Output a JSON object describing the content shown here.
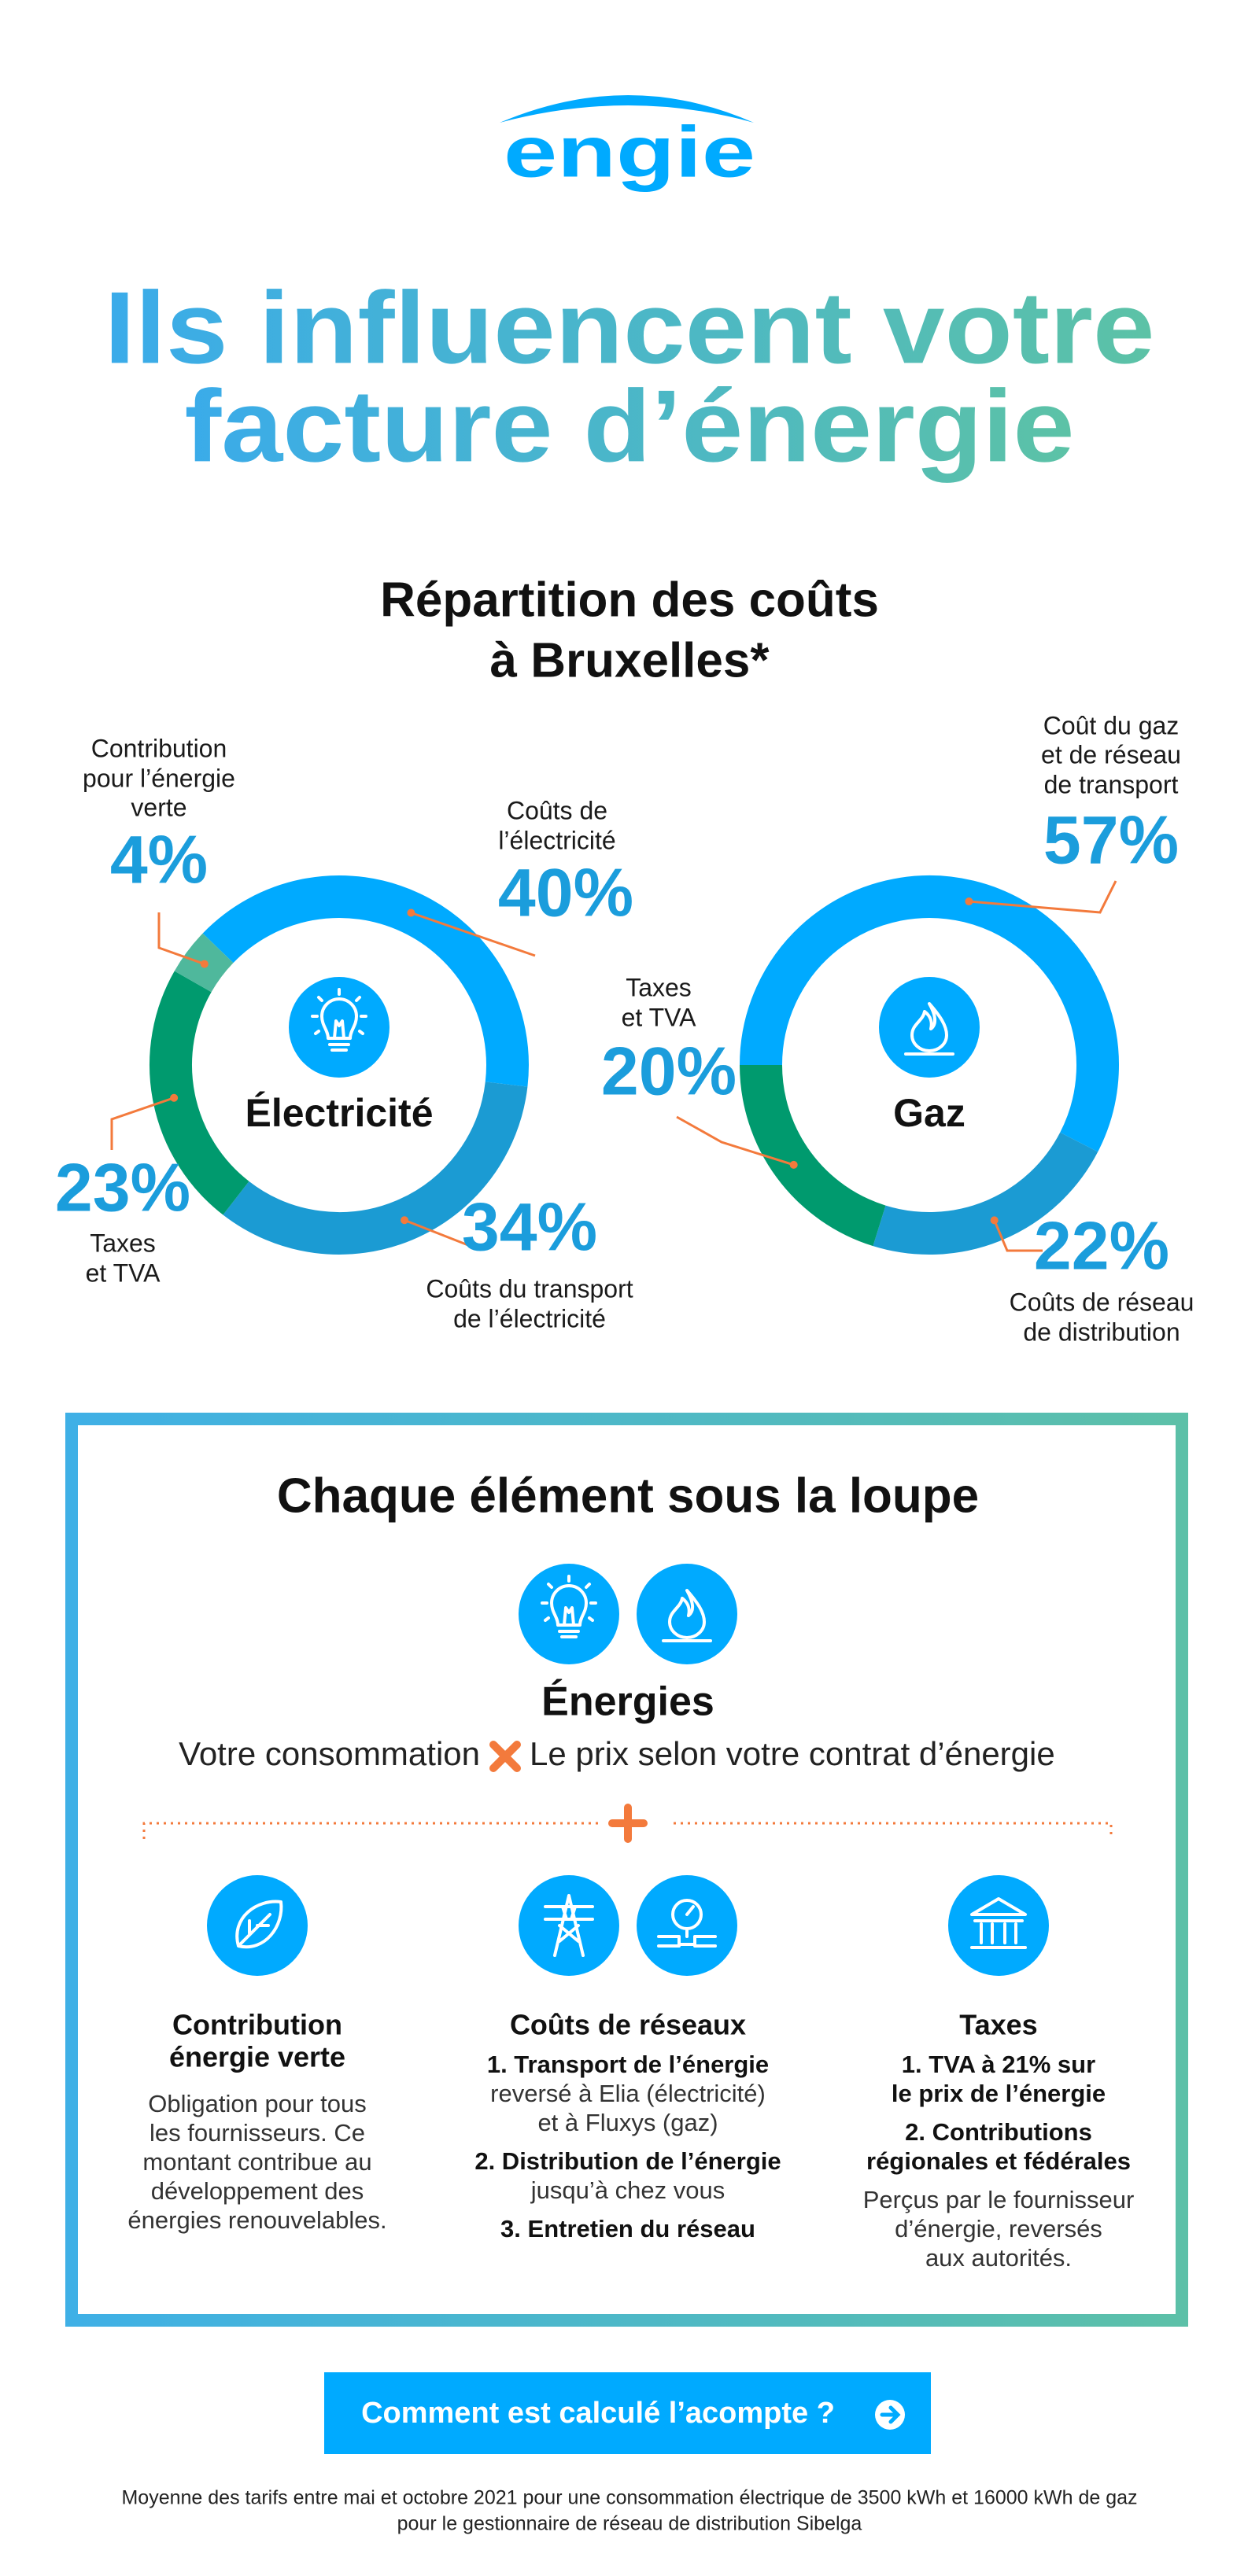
{
  "logo": "engie",
  "title": [
    "Ils influencent votre",
    "facture d’énergie"
  ],
  "subtitle": [
    "Répartition des coûts",
    "à Bruxelles*"
  ],
  "chart_data": [
    {
      "type": "pie",
      "center_label": "Électricité",
      "categories": [
        [
          "Coûts de",
          "l’électricité"
        ],
        [
          "Coûts du transport",
          "de l’électricité"
        ],
        [
          "Taxes",
          "et TVA"
        ],
        [
          "Contribution",
          "pour l’énergie",
          "verte"
        ]
      ],
      "values": [
        40,
        34,
        23,
        4
      ],
      "value_labels": [
        "40%",
        "34%",
        "23%",
        "4%"
      ],
      "colors": [
        "#00aaff",
        "#1b9bd3",
        "#009a6e",
        "#4fb89c"
      ]
    },
    {
      "type": "pie",
      "center_label": "Gaz",
      "categories": [
        [
          "Coût du gaz",
          "et de réseau",
          "de transport"
        ],
        [
          "Coûts de réseau",
          "de distribution"
        ],
        [
          "Taxes",
          "et TVA"
        ]
      ],
      "values": [
        57,
        22,
        20
      ],
      "value_labels": [
        "57%",
        "22%",
        "20%"
      ],
      "colors": [
        "#00aaff",
        "#1b9bd3",
        "#009a6e"
      ]
    }
  ],
  "details": {
    "title": "Chaque élément sous la loupe",
    "energies": {
      "title": "Énergies",
      "left": "Votre consommation",
      "right": "Le prix selon votre contrat d’énergie"
    },
    "columns": [
      {
        "title": [
          "Contribution",
          "énergie verte"
        ],
        "blocks": [
          {
            "plain": [
              "Obligation pour tous",
              "les fournisseurs. Ce",
              "montant contribue au",
              "développement des",
              "énergies renouvelables."
            ]
          }
        ]
      },
      {
        "title": [
          "Coûts de réseaux"
        ],
        "blocks": [
          {
            "bold": [
              "1. Transport de l’énergie"
            ],
            "plain": [
              "reversé à Elia (électricité)",
              "et à Fluxys (gaz)"
            ]
          },
          {
            "bold": [
              "2. Distribution de l’énergie"
            ],
            "plain": [
              "jusqu’à chez vous"
            ]
          },
          {
            "bold": [
              "3. Entretien du réseau"
            ]
          }
        ]
      },
      {
        "title": [
          "Taxes"
        ],
        "blocks": [
          {
            "bold": [
              "1. TVA à 21% sur",
              "le prix de l’énergie"
            ]
          },
          {
            "bold": [
              "2. Contributions",
              "régionales et fédérales"
            ]
          },
          {
            "plain": [
              "Perçus par le fournisseur",
              "d’énergie, reversés",
              "aux autorités."
            ]
          }
        ]
      }
    ]
  },
  "button": "Comment est calculé l’acompte ?",
  "footer": [
    "Moyenne des tarifs entre mai et octobre 2021 pour une consommation électrique de 3500 kWh et 16000 kWh de gaz",
    "pour le gestionnaire de réseau de distribution Sibelga"
  ]
}
